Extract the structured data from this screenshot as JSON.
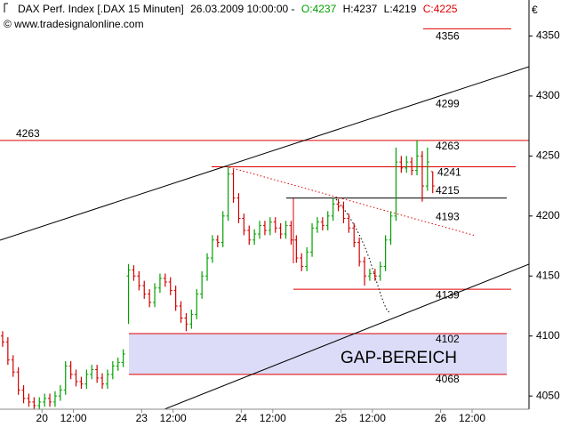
{
  "chart_data": {
    "type": "ohlc",
    "title": "DAX Perf. Index [.DAX  15 Minuten]",
    "timestamp": "26.03.2009 10:00:00 -",
    "quote_labels": [
      "O:",
      "H:",
      "L:",
      "C:"
    ],
    "source": "© www.tradesignalonline.com",
    "currency": "€",
    "annotation": "GAP-BEREICH",
    "up_color": "#00a000",
    "down_color": "#d00000",
    "ylim": [
      4039,
      4380
    ],
    "yticks": [
      4050,
      4100,
      4150,
      4200,
      4250,
      4300,
      4350
    ],
    "xlim": [
      0,
      201.7
    ],
    "xticks": [
      {
        "value": 16,
        "label": "20"
      },
      {
        "value": 28,
        "label": "12:00"
      },
      {
        "value": 54,
        "label": "23"
      },
      {
        "value": 66,
        "label": "12:00"
      },
      {
        "value": 92,
        "label": "24"
      },
      {
        "value": 104,
        "label": "12:00"
      },
      {
        "value": 130,
        "label": "25"
      },
      {
        "value": 142,
        "label": "12:00"
      },
      {
        "value": 168,
        "label": "26"
      },
      {
        "value": 180,
        "label": "12:00"
      }
    ],
    "levels": [
      {
        "value": 4356,
        "color": "#e00000"
      },
      {
        "value": 4263,
        "color": "#e00000"
      },
      {
        "value": 4241,
        "color": "#e00000"
      },
      {
        "value": 4215,
        "color": "#0000d0"
      },
      {
        "value": 4193,
        "color": "#e00000"
      },
      {
        "value": 4139,
        "color": "#e00000"
      },
      {
        "value": 4102,
        "color": "#e00000"
      },
      {
        "value": 4068,
        "color": "#e00000"
      },
      {
        "value": 4299,
        "color": "#000000"
      }
    ],
    "ohlc": {
      "x": [
        1,
        3,
        5,
        7,
        9,
        11,
        13,
        15,
        17,
        19,
        21,
        23,
        25,
        27,
        29,
        31,
        33,
        35,
        37,
        39,
        41,
        43,
        45,
        47,
        49,
        51,
        53,
        55,
        57,
        59,
        61,
        63,
        65,
        67,
        69,
        71,
        73,
        75,
        77,
        79,
        81,
        83,
        85,
        87,
        89,
        91,
        93,
        95,
        97,
        99,
        101,
        103,
        105,
        107,
        109,
        111,
        113,
        115,
        117,
        119,
        121,
        123,
        125,
        127,
        129,
        131,
        133,
        135,
        137,
        139,
        141,
        143,
        145,
        147,
        149,
        151,
        153,
        155,
        157,
        159,
        161,
        163,
        165
      ],
      "open": [
        4100,
        4095,
        4080,
        4070,
        4055,
        4048,
        4045,
        4042,
        4045,
        4048,
        4045,
        4050,
        4055,
        4075,
        4068,
        4062,
        4060,
        4068,
        4072,
        4065,
        4060,
        4068,
        4075,
        4078,
        4150,
        4155,
        4150,
        4142,
        4135,
        4128,
        4140,
        4148,
        4145,
        4138,
        4125,
        4115,
        4110,
        4118,
        4135,
        4150,
        4165,
        4180,
        4178,
        4200,
        4235,
        4215,
        4198,
        4188,
        4180,
        4185,
        4192,
        4188,
        4195,
        4190,
        4185,
        4192,
        4180,
        4165,
        4158,
        4170,
        4190,
        4195,
        4192,
        4200,
        4210,
        4208,
        4198,
        4190,
        4178,
        4162,
        4150,
        4152,
        4150,
        4158,
        4180,
        4200,
        4245,
        4240,
        4245,
        4238,
        4250,
        4225,
        4237
      ],
      "high": [
        4104,
        4099,
        4084,
        4074,
        4059,
        4052,
        4049,
        4049,
        4052,
        4052,
        4054,
        4059,
        4079,
        4079,
        4072,
        4066,
        4072,
        4076,
        4076,
        4069,
        4072,
        4079,
        4082,
        4089,
        4160,
        4159,
        4154,
        4146,
        4139,
        4144,
        4152,
        4152,
        4149,
        4142,
        4129,
        4119,
        4122,
        4139,
        4154,
        4169,
        4184,
        4184,
        4204,
        4241,
        4239,
        4219,
        4202,
        4192,
        4189,
        4196,
        4196,
        4199,
        4199,
        4194,
        4196,
        4196,
        4184,
        4169,
        4174,
        4194,
        4199,
        4199,
        4204,
        4215,
        4214,
        4212,
        4202,
        4194,
        4182,
        4166,
        4156,
        4156,
        4162,
        4184,
        4204,
        4257,
        4250,
        4250,
        4249,
        4263,
        4254,
        4257,
        4237
      ],
      "low": [
        4091,
        4076,
        4066,
        4051,
        4044,
        4041,
        4038,
        4038,
        4041,
        4041,
        4041,
        4046,
        4051,
        4064,
        4058,
        4056,
        4056,
        4064,
        4061,
        4056,
        4056,
        4064,
        4071,
        4074,
        4110,
        4146,
        4138,
        4131,
        4124,
        4124,
        4136,
        4141,
        4134,
        4121,
        4111,
        4104,
        4106,
        4114,
        4131,
        4146,
        4161,
        4174,
        4174,
        4196,
        4211,
        4194,
        4184,
        4176,
        4176,
        4181,
        4184,
        4184,
        4186,
        4181,
        4181,
        4176,
        4161,
        4154,
        4154,
        4166,
        4186,
        4188,
        4188,
        4196,
        4204,
        4194,
        4186,
        4174,
        4158,
        4142,
        4146,
        4146,
        4146,
        4154,
        4176,
        4196,
        4236,
        4236,
        4234,
        4234,
        4212,
        4221,
        4219
      ],
      "close": [
        4095,
        4080,
        4070,
        4055,
        4048,
        4045,
        4042,
        4045,
        4048,
        4045,
        4050,
        4055,
        4075,
        4068,
        4062,
        4060,
        4068,
        4072,
        4065,
        4060,
        4068,
        4075,
        4078,
        4085,
        4155,
        4150,
        4142,
        4135,
        4128,
        4140,
        4148,
        4145,
        4138,
        4125,
        4115,
        4110,
        4118,
        4135,
        4150,
        4165,
        4180,
        4178,
        4200,
        4235,
        4215,
        4198,
        4188,
        4180,
        4185,
        4192,
        4188,
        4195,
        4190,
        4185,
        4192,
        4180,
        4165,
        4158,
        4170,
        4190,
        4195,
        4192,
        4200,
        4210,
        4208,
        4198,
        4190,
        4178,
        4162,
        4150,
        4152,
        4150,
        4158,
        4180,
        4200,
        4245,
        4240,
        4245,
        4238,
        4250,
        4225,
        4245,
        4225
      ]
    }
  }
}
